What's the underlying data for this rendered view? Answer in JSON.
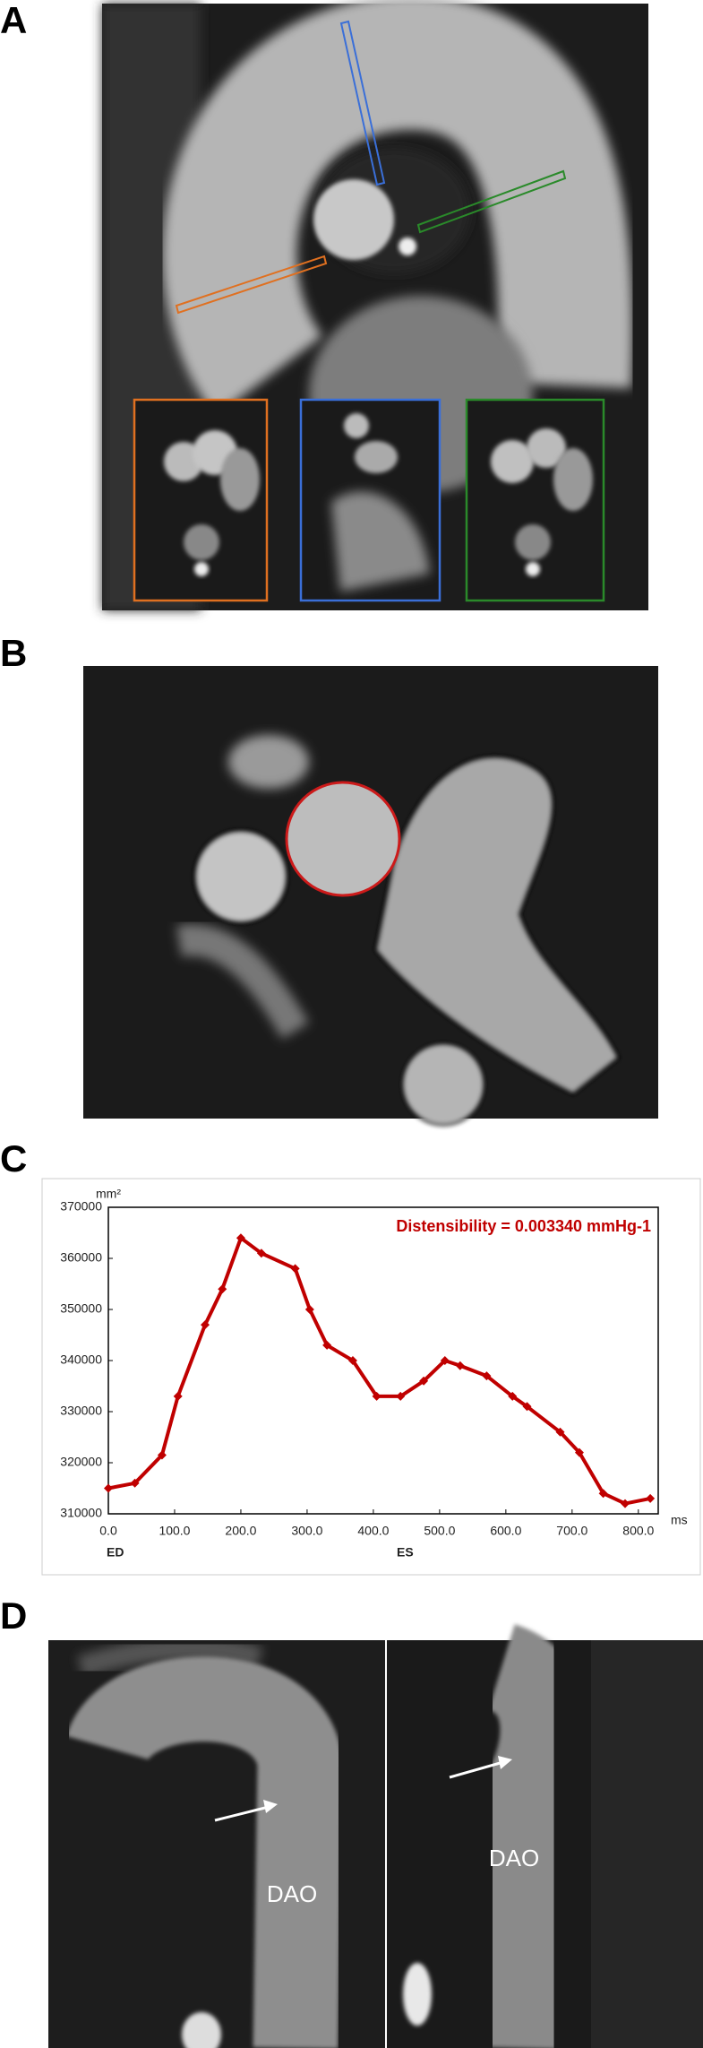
{
  "panel_labels": [
    "A",
    "B",
    "C",
    "D"
  ],
  "panel_d": {
    "annotations": [
      "DAO",
      "DAO"
    ]
  },
  "chart_data": {
    "type": "line",
    "y_label": "mm²",
    "x_label": "ms",
    "annotation": "Distensibility = 0.003340 mmHg-1",
    "x_annotations": [
      "ED",
      "ES"
    ],
    "x": [
      0,
      40,
      81,
      105,
      146,
      172,
      200,
      231,
      282,
      304,
      330,
      369,
      405,
      441,
      476,
      508,
      531,
      571,
      610,
      632,
      682,
      711,
      747,
      780,
      818
    ],
    "values": [
      315000,
      316000,
      321500,
      333000,
      347000,
      354000,
      364000,
      361000,
      358000,
      350000,
      343000,
      340000,
      333000,
      333000,
      336000,
      340000,
      339000,
      337000,
      333000,
      331000,
      326000,
      322000,
      314000,
      312000,
      313000
    ],
    "color": "#c00000",
    "xlim": [
      0,
      830
    ],
    "ylim": [
      310000,
      370000
    ],
    "xticks": [
      {
        "value": 0,
        "label": "0.0"
      },
      {
        "value": 100,
        "label": "100.0"
      },
      {
        "value": 200,
        "label": "200.0"
      },
      {
        "value": 300,
        "label": "300.0"
      },
      {
        "value": 400,
        "label": "400.0"
      },
      {
        "value": 500,
        "label": "500.0"
      },
      {
        "value": 600,
        "label": "600.0"
      },
      {
        "value": 700,
        "label": "700.0"
      },
      {
        "value": 800,
        "label": "800.0"
      }
    ],
    "yticks": [
      310000,
      320000,
      330000,
      340000,
      350000,
      360000,
      370000
    ],
    "grid": false
  }
}
